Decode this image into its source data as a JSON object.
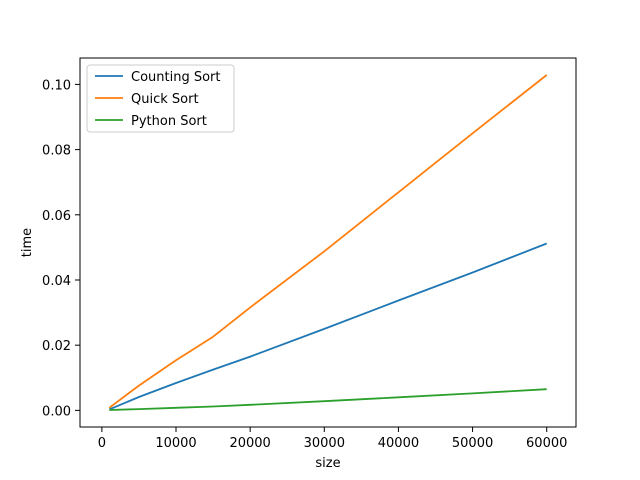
{
  "chart_data": {
    "type": "line",
    "xlabel": "size",
    "ylabel": "time",
    "xlim": [
      -2950,
      63950
    ],
    "ylim": [
      -0.0051,
      0.1081
    ],
    "xticks": [
      0,
      10000,
      20000,
      30000,
      40000,
      50000,
      60000
    ],
    "xtick_labels": [
      "0",
      "10000",
      "20000",
      "30000",
      "40000",
      "50000",
      "60000"
    ],
    "yticks": [
      0.0,
      0.02,
      0.04,
      0.06,
      0.08,
      0.1
    ],
    "ytick_labels": [
      "0.00",
      "0.02",
      "0.04",
      "0.06",
      "0.08",
      "0.10"
    ],
    "grid": false,
    "legend_position": "upper-left",
    "series": [
      {
        "name": "Counting Sort",
        "color": "#1f77b4",
        "x": [
          1000,
          5000,
          10000,
          15000,
          20000,
          30000,
          40000,
          50000,
          60000
        ],
        "y": [
          0.0003,
          0.0041,
          0.0084,
          0.0125,
          0.0165,
          0.025,
          0.0337,
          0.0423,
          0.0512
        ]
      },
      {
        "name": "Quick Sort",
        "color": "#ff7f0e",
        "x": [
          1000,
          5000,
          10000,
          15000,
          20000,
          30000,
          40000,
          50000,
          60000
        ],
        "y": [
          0.0008,
          0.0076,
          0.0154,
          0.0226,
          0.0316,
          0.0488,
          0.0669,
          0.085,
          0.1029
        ]
      },
      {
        "name": "Python Sort",
        "color": "#2ca02c",
        "x": [
          1000,
          5000,
          10000,
          15000,
          20000,
          30000,
          40000,
          50000,
          60000
        ],
        "y": [
          0.0001,
          0.0004,
          0.0008,
          0.0012,
          0.0017,
          0.0028,
          0.004,
          0.0052,
          0.0065
        ]
      }
    ]
  }
}
